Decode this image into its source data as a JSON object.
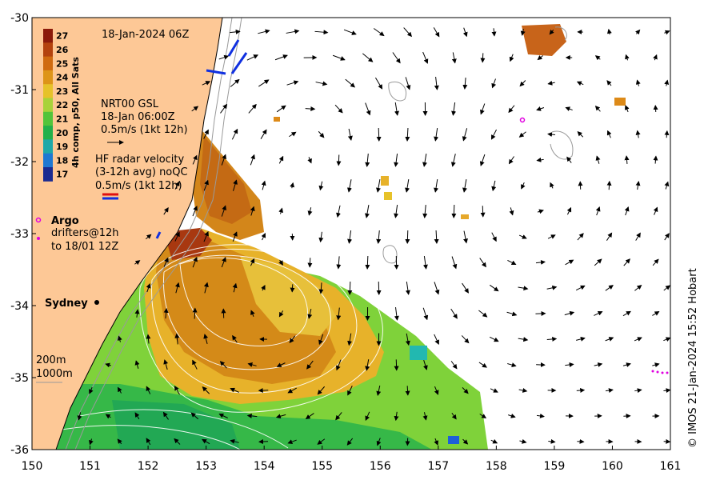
{
  "map": {
    "timestamp": "18-Jan-2024 06Z",
    "colorbar_title": "4h comp, p50, All Sats",
    "colorbar_ticks": [
      "27",
      "26",
      "25",
      "24",
      "23",
      "22",
      "21",
      "20",
      "19",
      "18",
      "17"
    ],
    "colorbar_colors": [
      "#8b1a0a",
      "#b4420e",
      "#cf6a10",
      "#dd9418",
      "#e6c22a",
      "#a8d23a",
      "#52c43a",
      "#22b04a",
      "#1ea8a8",
      "#1e78d2",
      "#1a2a90"
    ],
    "gsl_label": [
      "NRT00 GSL",
      "18-Jan 06:00Z",
      "0.5m/s (1kt 12h)"
    ],
    "hf_label": [
      "HF radar velocity",
      "(3-12h avg) noQC",
      "0.5m/s (1kt 12h)"
    ],
    "argo_label": "Argo",
    "drifters_label": [
      "drifters@12h",
      "to 18/01 12Z"
    ],
    "city_label": "Sydney",
    "depth_labels": [
      "200m",
      "1000m"
    ],
    "credit": "© IMOS 21-Jan-2024 15:52 Hobart",
    "x_ticks": [
      "150",
      "151",
      "152",
      "153",
      "154",
      "155",
      "156",
      "157",
      "158",
      "159",
      "160",
      "161"
    ],
    "y_ticks": [
      "-30",
      "-31",
      "-32",
      "-33",
      "-34",
      "-35",
      "-36"
    ],
    "x_range": [
      150,
      161
    ],
    "y_range": [
      -36,
      -30
    ],
    "colors": {
      "land": "#fdc896",
      "ocean": "#ffffff",
      "contour": "#ffffff",
      "bathy": "#9a9a9a",
      "hf_red": "#e01010",
      "hf_blue": "#1030e0",
      "argo": "#e000e0"
    }
  }
}
